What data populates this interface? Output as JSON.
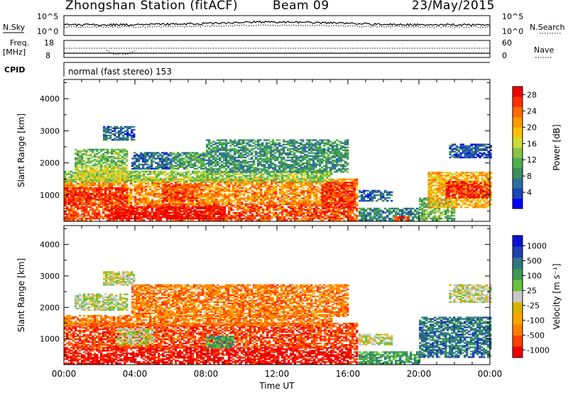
{
  "header": {
    "station_title": "Zhongshan Station (fitACF)",
    "beam": "Beam 09",
    "date": "23/May/2015"
  },
  "top_panel": {
    "left_label": "N.Sky",
    "right_label": "N.Search",
    "left_ticks": [
      "10^5",
      "10^0"
    ],
    "right_ticks": [
      "10^5",
      "10^0"
    ]
  },
  "freq_panel": {
    "left_label_line1": "Freq.",
    "left_label_line2": "[MHz]",
    "right_label": "Nave",
    "left_ticks": [
      "18",
      "8"
    ],
    "right_ticks": [
      "60",
      "0"
    ]
  },
  "cpid": {
    "label": "CPID",
    "mode_text": "normal (fast stereo) 153"
  },
  "colors": {
    "power_scale": [
      "#0000ff",
      "#1b46b4",
      "#2e6e9e",
      "#3e8e5e",
      "#4caf50",
      "#8bc34a",
      "#cddc39",
      "#ffc107",
      "#ff9800",
      "#ff6a00",
      "#ff3000",
      "#ee0000"
    ],
    "velocity_scale": [
      "#ee0000",
      "#ff4000",
      "#ff7f00",
      "#ffa500",
      "#d8b400",
      "#c8c8c8",
      "#66c43c",
      "#3e9a54",
      "#2e7a80",
      "#2040b0",
      "#0a10d0"
    ]
  },
  "chart_data": [
    {
      "type": "heatmap",
      "name": "power",
      "ylabel": "Slant Range [km]",
      "yticks": [
        1000,
        2000,
        3000,
        4000
      ],
      "ylim": [
        180,
        4600
      ],
      "xlim": [
        0,
        24
      ],
      "colorbar_label": "Power [dB]",
      "colorbar_ticks": [
        4,
        8,
        12,
        16,
        20,
        24,
        28
      ],
      "colorbar_range": [
        0,
        30
      ],
      "regions": [
        {
          "t0": 0.0,
          "t1": 16.5,
          "r0": 200,
          "r1": 700,
          "v": 25
        },
        {
          "t0": 0.0,
          "t1": 16.5,
          "r0": 700,
          "r1": 1500,
          "v": 22
        },
        {
          "t0": 0.0,
          "t1": 15.0,
          "r0": 1400,
          "r1": 1750,
          "v": 14
        },
        {
          "t0": 2.5,
          "t1": 9.0,
          "r0": 250,
          "r1": 650,
          "v": 29
        },
        {
          "t0": 0.0,
          "t1": 3.5,
          "r0": 700,
          "r1": 1200,
          "v": 27
        },
        {
          "t0": 5.5,
          "t1": 7.5,
          "r0": 800,
          "r1": 1300,
          "v": 26
        },
        {
          "t0": 14.5,
          "t1": 16.3,
          "r0": 600,
          "r1": 1400,
          "v": 27
        },
        {
          "t0": 0.6,
          "t1": 3.5,
          "r0": 1900,
          "r1": 2400,
          "v": 12
        },
        {
          "t0": 0.6,
          "t1": 3.5,
          "r0": 1500,
          "r1": 1900,
          "v": 16
        },
        {
          "t0": 3.8,
          "t1": 6.0,
          "r0": 1800,
          "r1": 2300,
          "v": 6
        },
        {
          "t0": 6.0,
          "t1": 8.0,
          "r0": 1800,
          "r1": 2300,
          "v": 10
        },
        {
          "t0": 8.0,
          "t1": 16.0,
          "r0": 1700,
          "r1": 2700,
          "v": 9
        },
        {
          "t0": 16.6,
          "t1": 20.0,
          "r0": 200,
          "r1": 600,
          "v": 8
        },
        {
          "t0": 16.6,
          "t1": 18.5,
          "r0": 800,
          "r1": 1150,
          "v": 6
        },
        {
          "t0": 18.6,
          "t1": 19.4,
          "r0": 200,
          "r1": 320,
          "v": 27
        },
        {
          "t0": 20.0,
          "t1": 22.0,
          "r0": 200,
          "r1": 900,
          "v": 12
        },
        {
          "t0": 20.5,
          "t1": 24.0,
          "r0": 600,
          "r1": 1700,
          "v": 20
        },
        {
          "t0": 21.5,
          "t1": 24.0,
          "r0": 900,
          "r1": 1400,
          "v": 27
        },
        {
          "t0": 21.7,
          "t1": 24.0,
          "r0": 2150,
          "r1": 2600,
          "v": 5
        },
        {
          "t0": 2.2,
          "t1": 4.0,
          "r0": 2700,
          "r1": 3150,
          "v": 6
        }
      ]
    },
    {
      "type": "heatmap",
      "name": "velocity",
      "ylabel": "Slant Range [km]",
      "xlabel": "Time UT",
      "yticks": [
        1000,
        2000,
        3000,
        4000
      ],
      "ylim": [
        180,
        4600
      ],
      "xlim": [
        0,
        24
      ],
      "xticks": [
        "00:00",
        "04:00",
        "08:00",
        "12:00",
        "16:00",
        "20:00",
        "00:00"
      ],
      "colorbar_label": "Velocity [m s⁻¹]",
      "colorbar_ticks": [
        1000,
        500,
        100,
        25,
        -25,
        -100,
        -500,
        -1000
      ],
      "regions": [
        {
          "t0": 0.0,
          "t1": 16.5,
          "r0": 200,
          "r1": 700,
          "v": -5
        },
        {
          "t0": 0.0,
          "t1": 16.5,
          "r0": 700,
          "r1": 1500,
          "v": -4
        },
        {
          "t0": 0.0,
          "t1": 15.0,
          "r0": 1400,
          "r1": 1750,
          "v": -3
        },
        {
          "t0": 3.0,
          "t1": 5.0,
          "r0": 800,
          "r1": 1300,
          "v": 0
        },
        {
          "t0": 8.0,
          "t1": 9.5,
          "r0": 700,
          "r1": 1100,
          "v": 2
        },
        {
          "t0": 0.6,
          "t1": 3.5,
          "r0": 1900,
          "r1": 2400,
          "v": 0
        },
        {
          "t0": 3.8,
          "t1": 16.0,
          "r0": 1700,
          "r1": 2700,
          "v": -3
        },
        {
          "t0": 16.6,
          "t1": 20.0,
          "r0": 200,
          "r1": 600,
          "v": 2
        },
        {
          "t0": 16.6,
          "t1": 18.5,
          "r0": 800,
          "r1": 1150,
          "v": 0
        },
        {
          "t0": 20.0,
          "t1": 24.0,
          "r0": 400,
          "r1": 1700,
          "v": 3
        },
        {
          "t0": 21.7,
          "t1": 24.0,
          "r0": 2150,
          "r1": 2700,
          "v": 0
        },
        {
          "t0": 2.2,
          "t1": 4.0,
          "r0": 2700,
          "r1": 3150,
          "v": 0
        }
      ]
    }
  ]
}
